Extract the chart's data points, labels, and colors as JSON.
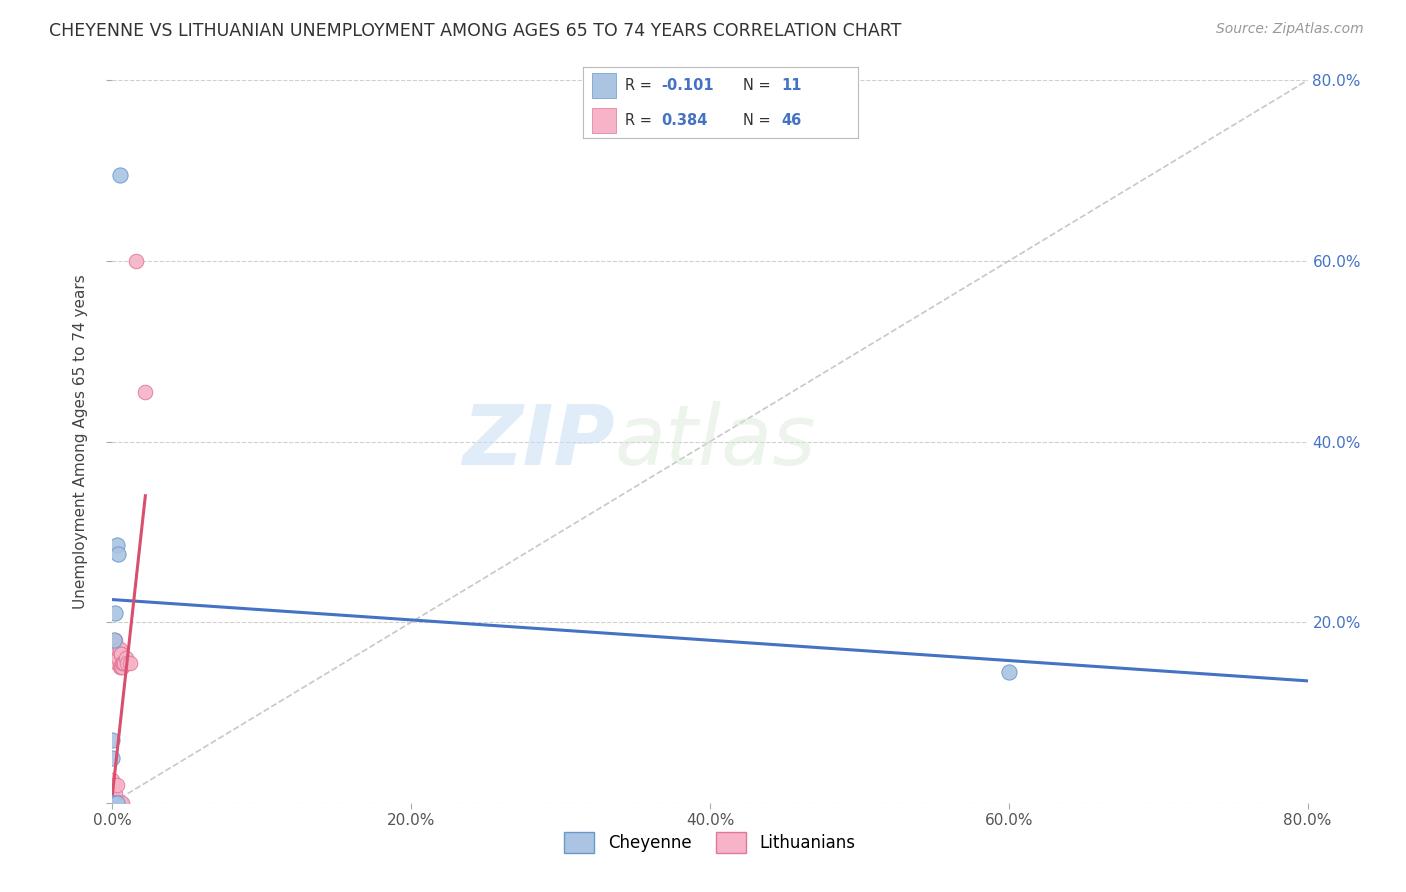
{
  "title": "CHEYENNE VS LITHUANIAN UNEMPLOYMENT AMONG AGES 65 TO 74 YEARS CORRELATION CHART",
  "source": "Source: ZipAtlas.com",
  "ylabel": "Unemployment Among Ages 65 to 74 years",
  "xlim": [
    0.0,
    0.8
  ],
  "ylim": [
    0.0,
    0.8
  ],
  "xticks": [
    0.0,
    0.2,
    0.4,
    0.6,
    0.8
  ],
  "yticks": [
    0.0,
    0.2,
    0.4,
    0.6,
    0.8
  ],
  "xticklabels": [
    "0.0%",
    "20.0%",
    "40.0%",
    "60.0%",
    "80.0%"
  ],
  "right_yticklabels": [
    "",
    "20.0%",
    "40.0%",
    "60.0%",
    "80.0%"
  ],
  "cheyenne_color": "#aac4e2",
  "cheyenne_edge": "#6699cc",
  "lithuanian_color": "#f7b3c8",
  "lithuanian_edge": "#e07898",
  "trend_blue": "#4472c4",
  "trend_pink": "#d94f6e",
  "ref_line_color": "#c8c8c8",
  "watermark_zip": "ZIP",
  "watermark_atlas": "atlas",
  "cheyenne_x": [
    0.0,
    0.0,
    0.0,
    0.001,
    0.001,
    0.002,
    0.003,
    0.003,
    0.004,
    0.005,
    0.6
  ],
  "cheyenne_y": [
    0.0,
    0.05,
    0.07,
    0.0,
    0.18,
    0.21,
    0.0,
    0.285,
    0.275,
    0.695,
    0.145
  ],
  "lithuanian_x": [
    0.0,
    0.0,
    0.0,
    0.0,
    0.0,
    0.0,
    0.0,
    0.0,
    0.0,
    0.001,
    0.001,
    0.001,
    0.0015,
    0.0015,
    0.002,
    0.002,
    0.002,
    0.002,
    0.0025,
    0.0025,
    0.003,
    0.003,
    0.003,
    0.0035,
    0.0035,
    0.004,
    0.004,
    0.004,
    0.0045,
    0.005,
    0.005,
    0.005,
    0.0055,
    0.0055,
    0.006,
    0.006,
    0.0065,
    0.0065,
    0.0065,
    0.007,
    0.008,
    0.009,
    0.01,
    0.012,
    0.0155,
    0.022
  ],
  "lithuanian_y": [
    0.0,
    0.0,
    0.0,
    0.0,
    0.0,
    0.01,
    0.01,
    0.02,
    0.025,
    0.0,
    0.0,
    0.02,
    0.0,
    0.18,
    0.0,
    0.0,
    0.01,
    0.175,
    0.0,
    0.16,
    0.0,
    0.02,
    0.155,
    0.0,
    0.165,
    0.0,
    0.16,
    0.17,
    0.0,
    0.0,
    0.15,
    0.17,
    0.0,
    0.165,
    0.15,
    0.165,
    0.0,
    0.15,
    0.155,
    0.155,
    0.155,
    0.16,
    0.155,
    0.155,
    0.6,
    0.455
  ],
  "blue_trend_x0": 0.0,
  "blue_trend_y0": 0.225,
  "blue_trend_x1": 0.8,
  "blue_trend_y1": 0.135,
  "pink_trend_x0": 0.0,
  "pink_trend_y0": 0.01,
  "pink_trend_x1": 0.022,
  "pink_trend_y1": 0.34
}
